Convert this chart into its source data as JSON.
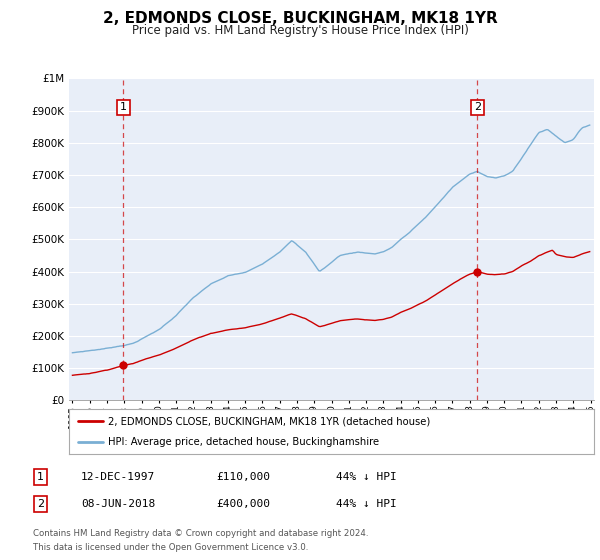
{
  "title": "2, EDMONDS CLOSE, BUCKINGHAM, MK18 1YR",
  "subtitle": "Price paid vs. HM Land Registry's House Price Index (HPI)",
  "title_fontsize": 11,
  "subtitle_fontsize": 8.5,
  "ylim": [
    0,
    1000000
  ],
  "xlim": [
    1994.8,
    2025.2
  ],
  "background_color": "#ffffff",
  "plot_bg_color": "#e8eef8",
  "grid_color": "#ffffff",
  "transaction1": {
    "date_num": 1997.95,
    "price": 110000
  },
  "transaction2": {
    "date_num": 2018.45,
    "price": 400000
  },
  "legend_label_red": "2, EDMONDS CLOSE, BUCKINGHAM, MK18 1YR (detached house)",
  "legend_label_blue": "HPI: Average price, detached house, Buckinghamshire",
  "footnote1": "Contains HM Land Registry data © Crown copyright and database right 2024.",
  "footnote2": "This data is licensed under the Open Government Licence v3.0.",
  "red_color": "#cc0000",
  "blue_color": "#7aafd4",
  "vline_color": "#cc0000",
  "marker_color": "#cc0000",
  "table_row1": [
    "1",
    "12-DEC-1997",
    "£110,000",
    "44% ↓ HPI"
  ],
  "table_row2": [
    "2",
    "08-JUN-2018",
    "£400,000",
    "44% ↓ HPI"
  ]
}
